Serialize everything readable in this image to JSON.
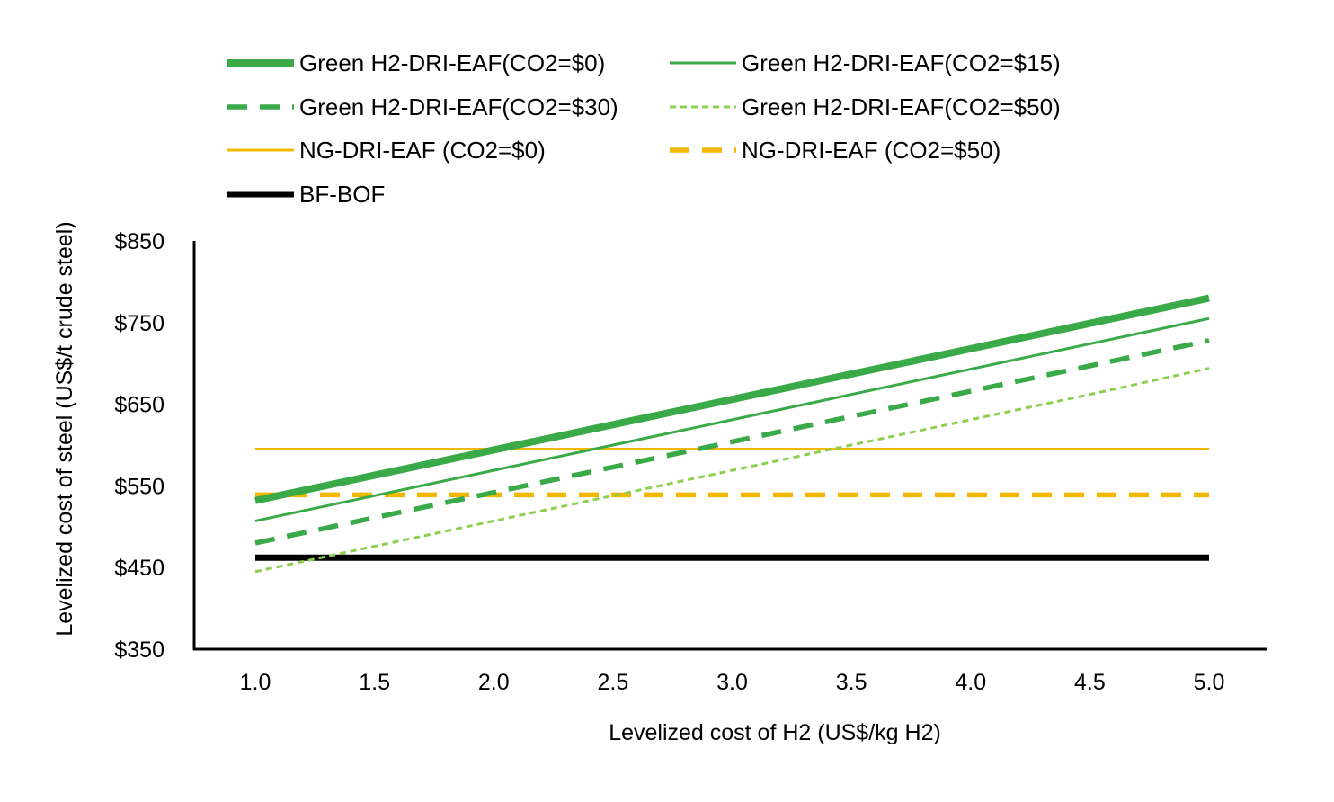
{
  "chart_data": {
    "type": "line",
    "title": "",
    "xlabel": "Levelized cost of H2 (US$/kg H2)",
    "ylabel": "Levelized cost of steel (US$/t crude steel)",
    "x": [
      1.0,
      1.5,
      2.0,
      2.5,
      3.0,
      3.5,
      4.0,
      4.5,
      5.0
    ],
    "x_tick_labels": [
      "1.0",
      "1.5",
      "2.0",
      "2.5",
      "3.0",
      "3.5",
      "4.0",
      "4.5",
      "5.0"
    ],
    "ylim": [
      350,
      850
    ],
    "y_ticks": [
      350,
      450,
      550,
      650,
      750,
      850
    ],
    "y_tick_labels": [
      "$350",
      "$450",
      "$550",
      "$650",
      "$750",
      "$850"
    ],
    "grid": false,
    "legend_position": "top",
    "series": [
      {
        "name": "Green H2-DRI-EAF(CO2=$0)",
        "color": "#3aaa48",
        "style": "solid-thick",
        "values": [
          532,
          563,
          594,
          625,
          656,
          687,
          718,
          749,
          780
        ]
      },
      {
        "name": "Green H2-DRI-EAF(CO2=$15)",
        "color": "#3aaa48",
        "style": "solid-thin",
        "values": [
          507,
          538,
          569,
          600,
          631,
          662,
          693,
          724,
          755
        ]
      },
      {
        "name": "Green H2-DRI-EAF(CO2=$30)",
        "color": "#3aaa48",
        "style": "dash",
        "values": [
          480,
          511,
          542,
          573,
          604,
          635,
          666,
          697,
          728
        ]
      },
      {
        "name": "Green H2-DRI-EAF(CO2=$50)",
        "color": "#8dcf50",
        "style": "dot",
        "values": [
          445,
          476,
          507,
          538,
          569,
          600,
          631,
          662,
          694
        ]
      },
      {
        "name": "NG-DRI-EAF (CO2=$0)",
        "color": "#f2b800",
        "style": "solid-thin",
        "values": [
          595,
          595,
          595,
          595,
          595,
          595,
          595,
          595,
          595
        ]
      },
      {
        "name": "NG-DRI-EAF (CO2=$50)",
        "color": "#f2b800",
        "style": "dash",
        "values": [
          539,
          539,
          539,
          539,
          539,
          539,
          539,
          539,
          539
        ]
      },
      {
        "name": "BF-BOF",
        "color": "#000000",
        "style": "solid-bold",
        "values": [
          462,
          462,
          462,
          462,
          462,
          462,
          462,
          462,
          462
        ]
      }
    ]
  }
}
